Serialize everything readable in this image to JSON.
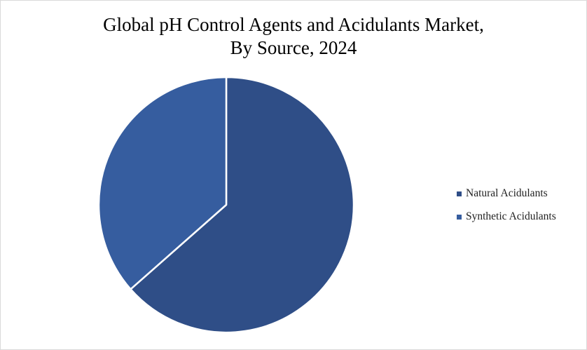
{
  "chart_data": {
    "type": "pie",
    "title_line1": "Global pH Control Agents and Acidulants Market,",
    "title_line2": "By Source, 2024",
    "legend_position": "right",
    "start_angle_deg": 0,
    "direction": "clockwise",
    "slices": [
      {
        "name": "Natural Acidulants",
        "value": 63.5,
        "color": "#2f4e87"
      },
      {
        "name": "Synthetic Acidulants",
        "value": 36.5,
        "color": "#365d9f"
      }
    ]
  }
}
